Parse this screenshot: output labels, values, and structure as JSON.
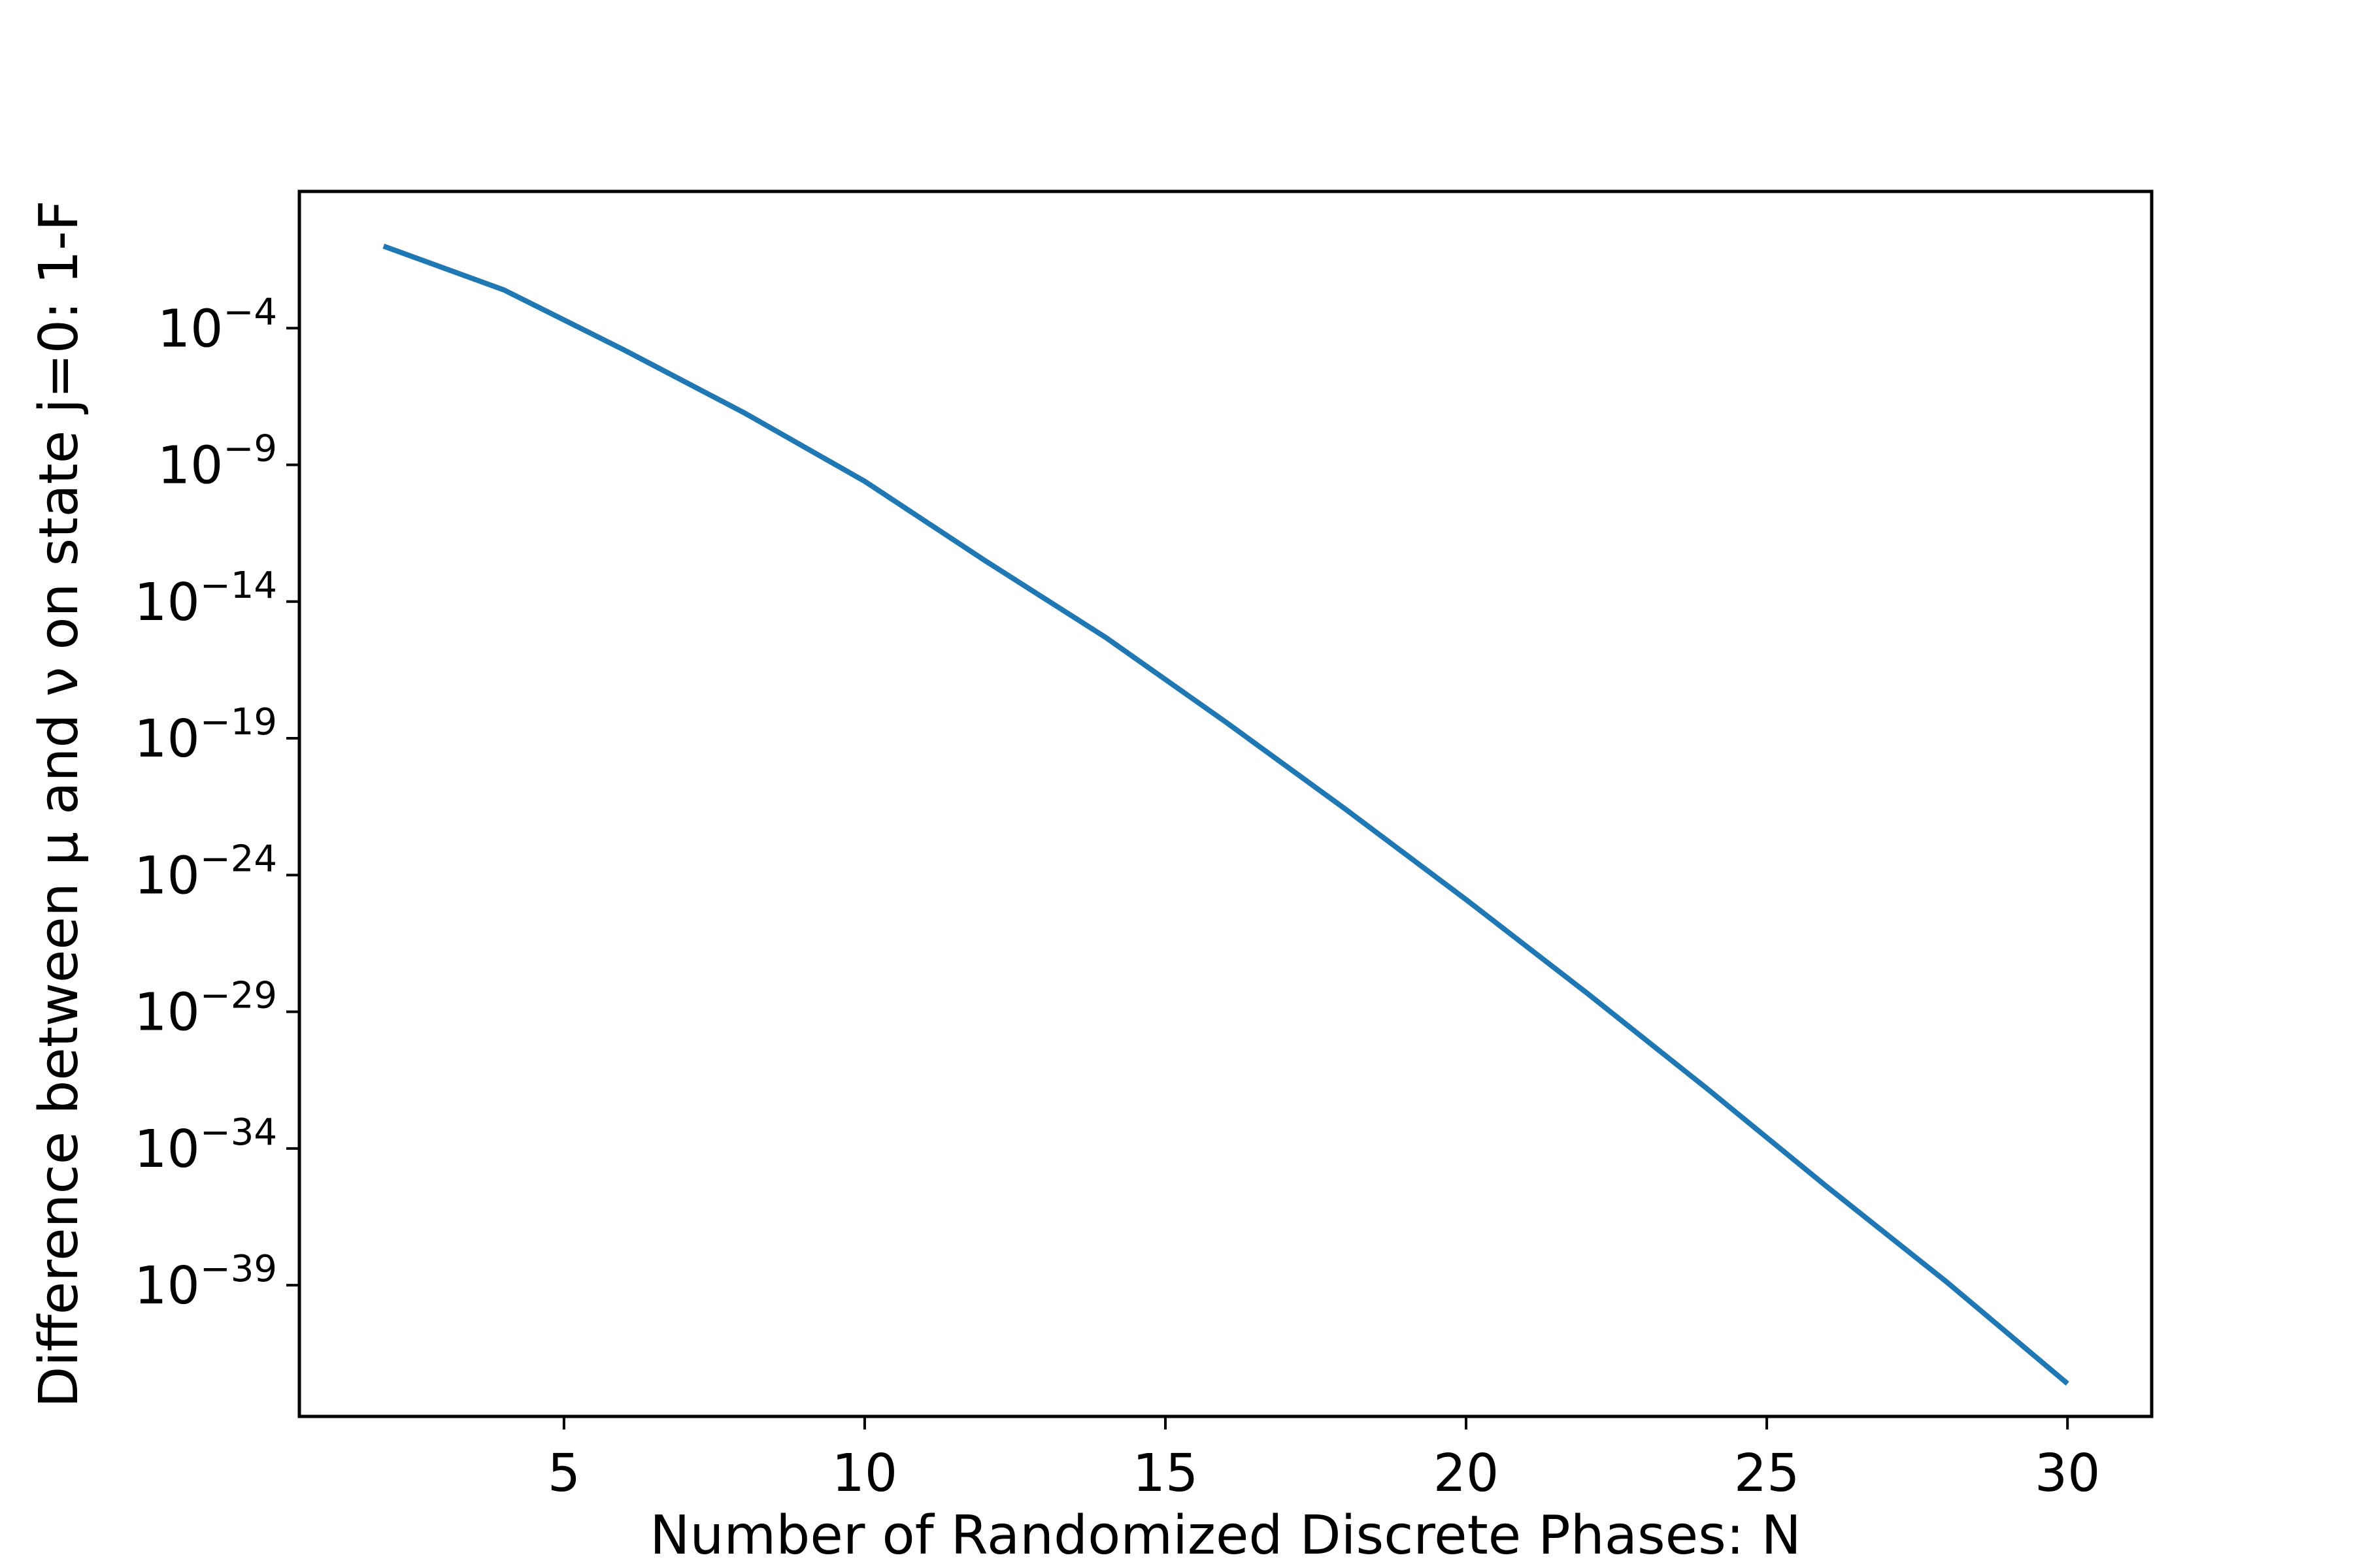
{
  "chart_data": {
    "type": "line",
    "title": "",
    "xlabel": "Number of Randomized Discrete Phases: N",
    "ylabel": "Difference between μ and ν on state j=0: 1-F",
    "xlim": [
      0.6,
      31.4
    ],
    "ylim_exponent": [
      -43.8,
      1.0
    ],
    "yscale": "log",
    "grid": false,
    "legend": "none",
    "line_color": "#1f77b4",
    "x_ticks": [
      5,
      10,
      15,
      20,
      25,
      30
    ],
    "x_tick_labels": [
      "5",
      "10",
      "15",
      "20",
      "25",
      "30"
    ],
    "y_tick_exponents": [
      -4,
      -9,
      -14,
      -19,
      -24,
      -29,
      -34,
      -39
    ],
    "y_tick_labels": [
      {
        "base": "10",
        "exp": "−4"
      },
      {
        "base": "10",
        "exp": "−9"
      },
      {
        "base": "10",
        "exp": "−14"
      },
      {
        "base": "10",
        "exp": "−19"
      },
      {
        "base": "10",
        "exp": "−24"
      },
      {
        "base": "10",
        "exp": "−29"
      },
      {
        "base": "10",
        "exp": "−34"
      },
      {
        "base": "10",
        "exp": "−39"
      }
    ],
    "series": [
      {
        "x": [
          2,
          4,
          6,
          8,
          10,
          12,
          14,
          16,
          18,
          20,
          22,
          24,
          26,
          28,
          30
        ],
        "y_exponent": [
          -1.0,
          -2.6,
          -4.8,
          -7.1,
          -9.6,
          -12.5,
          -15.3,
          -18.4,
          -21.6,
          -24.9,
          -28.3,
          -31.8,
          -35.4,
          -38.9,
          -42.6
        ]
      }
    ]
  }
}
